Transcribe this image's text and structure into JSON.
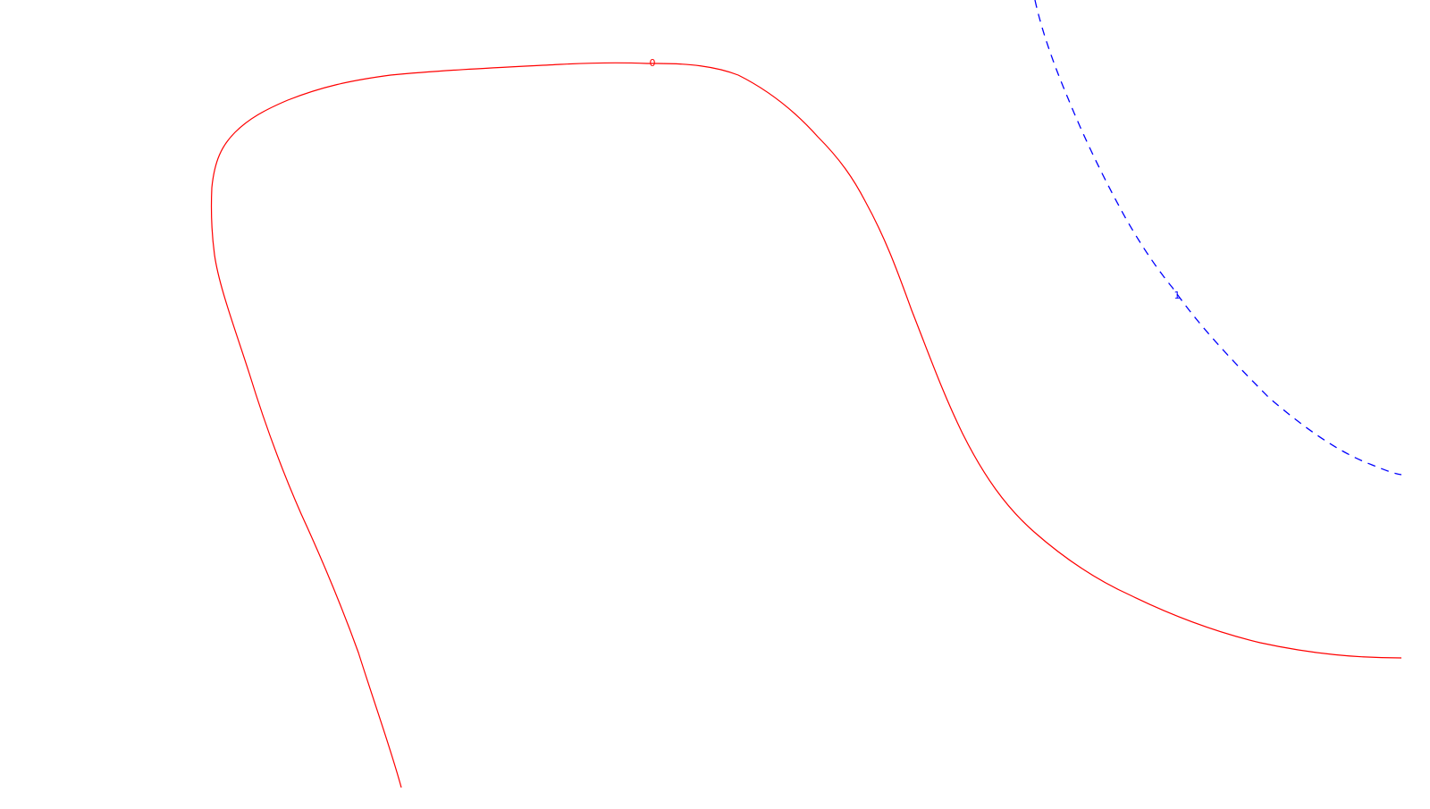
{
  "contours": [
    {
      "name": "contour-0",
      "label": "0",
      "color": "#ff0000",
      "line_style": "solid"
    },
    {
      "name": "contour-1",
      "label": "1",
      "color": "#0000ff",
      "line_style": "dashed"
    }
  ]
}
